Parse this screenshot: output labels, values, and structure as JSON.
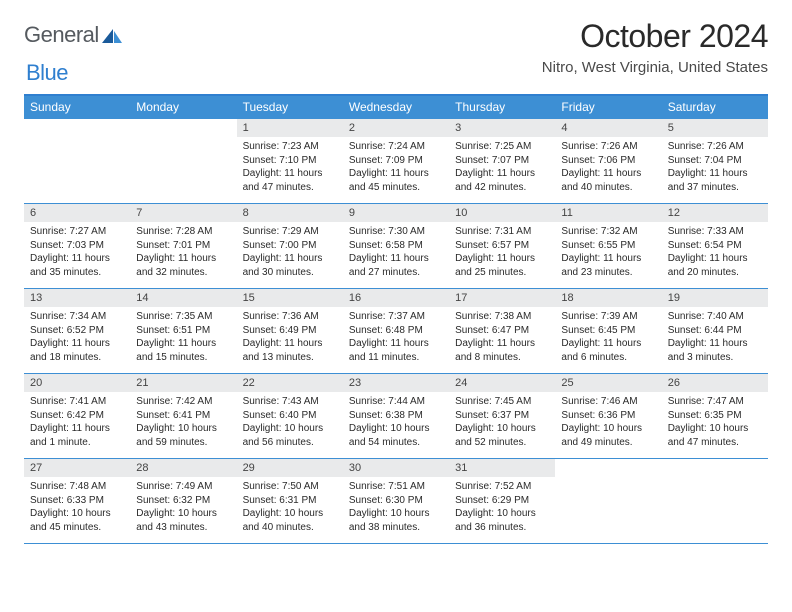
{
  "logo": {
    "text1": "General",
    "text2": "Blue"
  },
  "title": "October 2024",
  "location": "Nitro, West Virginia, United States",
  "colors": {
    "accent": "#3d8fd4",
    "border": "#2f7fcf",
    "daybar": "#e9eaeb",
    "text": "#2a2a2a"
  },
  "dayNames": [
    "Sunday",
    "Monday",
    "Tuesday",
    "Wednesday",
    "Thursday",
    "Friday",
    "Saturday"
  ],
  "startOffset": 2,
  "days": [
    {
      "n": "1",
      "sunrise": "Sunrise: 7:23 AM",
      "sunset": "Sunset: 7:10 PM",
      "daylight": "Daylight: 11 hours and 47 minutes."
    },
    {
      "n": "2",
      "sunrise": "Sunrise: 7:24 AM",
      "sunset": "Sunset: 7:09 PM",
      "daylight": "Daylight: 11 hours and 45 minutes."
    },
    {
      "n": "3",
      "sunrise": "Sunrise: 7:25 AM",
      "sunset": "Sunset: 7:07 PM",
      "daylight": "Daylight: 11 hours and 42 minutes."
    },
    {
      "n": "4",
      "sunrise": "Sunrise: 7:26 AM",
      "sunset": "Sunset: 7:06 PM",
      "daylight": "Daylight: 11 hours and 40 minutes."
    },
    {
      "n": "5",
      "sunrise": "Sunrise: 7:26 AM",
      "sunset": "Sunset: 7:04 PM",
      "daylight": "Daylight: 11 hours and 37 minutes."
    },
    {
      "n": "6",
      "sunrise": "Sunrise: 7:27 AM",
      "sunset": "Sunset: 7:03 PM",
      "daylight": "Daylight: 11 hours and 35 minutes."
    },
    {
      "n": "7",
      "sunrise": "Sunrise: 7:28 AM",
      "sunset": "Sunset: 7:01 PM",
      "daylight": "Daylight: 11 hours and 32 minutes."
    },
    {
      "n": "8",
      "sunrise": "Sunrise: 7:29 AM",
      "sunset": "Sunset: 7:00 PM",
      "daylight": "Daylight: 11 hours and 30 minutes."
    },
    {
      "n": "9",
      "sunrise": "Sunrise: 7:30 AM",
      "sunset": "Sunset: 6:58 PM",
      "daylight": "Daylight: 11 hours and 27 minutes."
    },
    {
      "n": "10",
      "sunrise": "Sunrise: 7:31 AM",
      "sunset": "Sunset: 6:57 PM",
      "daylight": "Daylight: 11 hours and 25 minutes."
    },
    {
      "n": "11",
      "sunrise": "Sunrise: 7:32 AM",
      "sunset": "Sunset: 6:55 PM",
      "daylight": "Daylight: 11 hours and 23 minutes."
    },
    {
      "n": "12",
      "sunrise": "Sunrise: 7:33 AM",
      "sunset": "Sunset: 6:54 PM",
      "daylight": "Daylight: 11 hours and 20 minutes."
    },
    {
      "n": "13",
      "sunrise": "Sunrise: 7:34 AM",
      "sunset": "Sunset: 6:52 PM",
      "daylight": "Daylight: 11 hours and 18 minutes."
    },
    {
      "n": "14",
      "sunrise": "Sunrise: 7:35 AM",
      "sunset": "Sunset: 6:51 PM",
      "daylight": "Daylight: 11 hours and 15 minutes."
    },
    {
      "n": "15",
      "sunrise": "Sunrise: 7:36 AM",
      "sunset": "Sunset: 6:49 PM",
      "daylight": "Daylight: 11 hours and 13 minutes."
    },
    {
      "n": "16",
      "sunrise": "Sunrise: 7:37 AM",
      "sunset": "Sunset: 6:48 PM",
      "daylight": "Daylight: 11 hours and 11 minutes."
    },
    {
      "n": "17",
      "sunrise": "Sunrise: 7:38 AM",
      "sunset": "Sunset: 6:47 PM",
      "daylight": "Daylight: 11 hours and 8 minutes."
    },
    {
      "n": "18",
      "sunrise": "Sunrise: 7:39 AM",
      "sunset": "Sunset: 6:45 PM",
      "daylight": "Daylight: 11 hours and 6 minutes."
    },
    {
      "n": "19",
      "sunrise": "Sunrise: 7:40 AM",
      "sunset": "Sunset: 6:44 PM",
      "daylight": "Daylight: 11 hours and 3 minutes."
    },
    {
      "n": "20",
      "sunrise": "Sunrise: 7:41 AM",
      "sunset": "Sunset: 6:42 PM",
      "daylight": "Daylight: 11 hours and 1 minute."
    },
    {
      "n": "21",
      "sunrise": "Sunrise: 7:42 AM",
      "sunset": "Sunset: 6:41 PM",
      "daylight": "Daylight: 10 hours and 59 minutes."
    },
    {
      "n": "22",
      "sunrise": "Sunrise: 7:43 AM",
      "sunset": "Sunset: 6:40 PM",
      "daylight": "Daylight: 10 hours and 56 minutes."
    },
    {
      "n": "23",
      "sunrise": "Sunrise: 7:44 AM",
      "sunset": "Sunset: 6:38 PM",
      "daylight": "Daylight: 10 hours and 54 minutes."
    },
    {
      "n": "24",
      "sunrise": "Sunrise: 7:45 AM",
      "sunset": "Sunset: 6:37 PM",
      "daylight": "Daylight: 10 hours and 52 minutes."
    },
    {
      "n": "25",
      "sunrise": "Sunrise: 7:46 AM",
      "sunset": "Sunset: 6:36 PM",
      "daylight": "Daylight: 10 hours and 49 minutes."
    },
    {
      "n": "26",
      "sunrise": "Sunrise: 7:47 AM",
      "sunset": "Sunset: 6:35 PM",
      "daylight": "Daylight: 10 hours and 47 minutes."
    },
    {
      "n": "27",
      "sunrise": "Sunrise: 7:48 AM",
      "sunset": "Sunset: 6:33 PM",
      "daylight": "Daylight: 10 hours and 45 minutes."
    },
    {
      "n": "28",
      "sunrise": "Sunrise: 7:49 AM",
      "sunset": "Sunset: 6:32 PM",
      "daylight": "Daylight: 10 hours and 43 minutes."
    },
    {
      "n": "29",
      "sunrise": "Sunrise: 7:50 AM",
      "sunset": "Sunset: 6:31 PM",
      "daylight": "Daylight: 10 hours and 40 minutes."
    },
    {
      "n": "30",
      "sunrise": "Sunrise: 7:51 AM",
      "sunset": "Sunset: 6:30 PM",
      "daylight": "Daylight: 10 hours and 38 minutes."
    },
    {
      "n": "31",
      "sunrise": "Sunrise: 7:52 AM",
      "sunset": "Sunset: 6:29 PM",
      "daylight": "Daylight: 10 hours and 36 minutes."
    }
  ]
}
